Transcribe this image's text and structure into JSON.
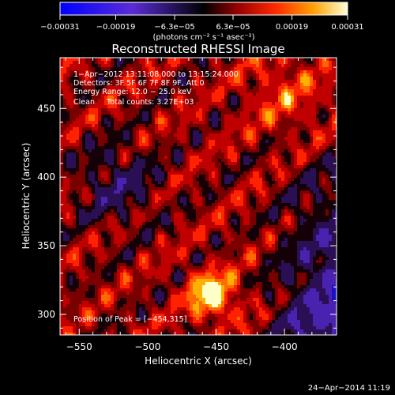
{
  "chart_data": {
    "type": "heatmap",
    "title": "Reconstructed RHESSI Image",
    "xlabel": "Heliocentric X (arcsec)",
    "ylabel": "Heliocentric Y (arcsec)",
    "xlim": [
      -564,
      -362
    ],
    "ylim": [
      285,
      487
    ],
    "x_ticks": [
      -550,
      -500,
      -450,
      -400
    ],
    "x_tick_labels": [
      "−550",
      "−500",
      "−450",
      "−400"
    ],
    "y_ticks": [
      300,
      350,
      400,
      450
    ],
    "y_tick_labels": [
      "300",
      "350",
      "400",
      "450"
    ],
    "colorbar": {
      "label": "(photons cm⁻² s⁻¹ asec⁻²)",
      "range": [
        -0.00031,
        0.00031
      ],
      "ticks": [
        -0.00031,
        -0.00019,
        -6.3e-05,
        6.3e-05,
        0.00019,
        0.00031
      ],
      "tick_labels": [
        "−0.00031",
        "−0.00019",
        "−6.3e−05",
        "6.3e−05",
        "0.00019",
        "0.00031"
      ]
    },
    "annotations": [
      "1−Apr−2012 13:11:08.000 to 13:15:24.000",
      "Detectors: 3F 5F 6F 7F 8F 9F, Att 0",
      "Energy Range: 12.0 − 25.0 keV",
      "Clean     Total counts: 3.27E+03"
    ],
    "peak_label": "Position of Peak = [−454,315]",
    "peak": [
      -454,
      315
    ]
  },
  "footer": {
    "date": "24−Apr−2014 11:19"
  }
}
